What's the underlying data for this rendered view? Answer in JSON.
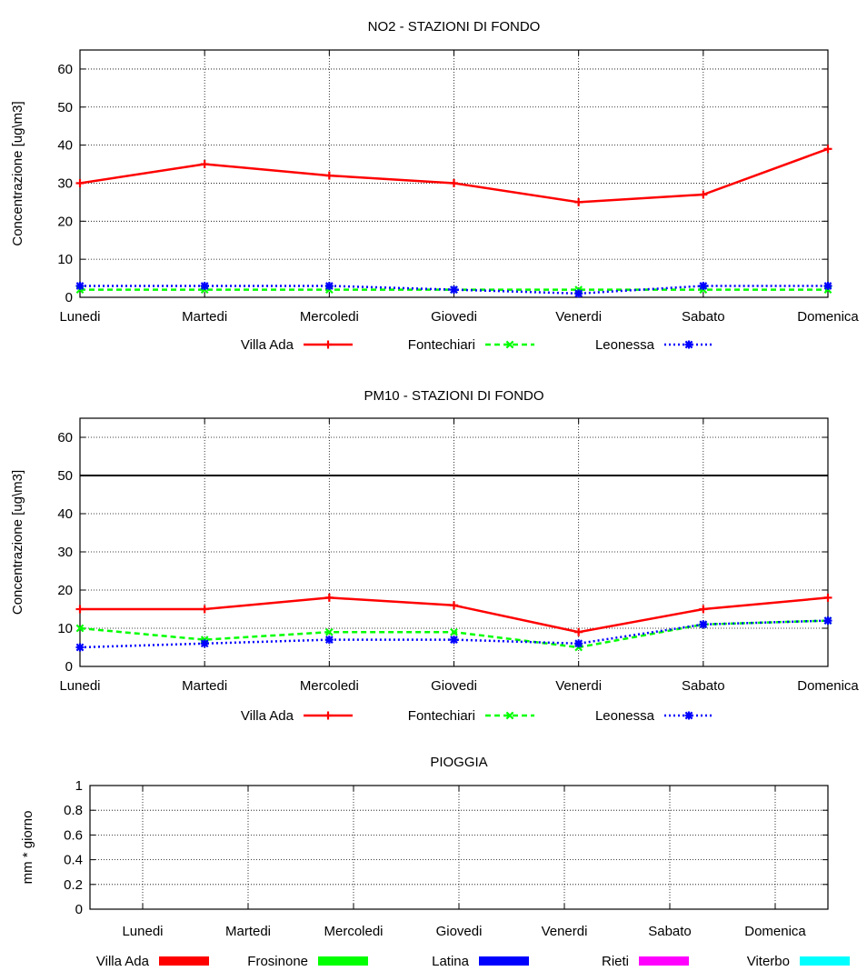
{
  "chart_data": [
    {
      "type": "line",
      "title": "NO2 - STAZIONI DI FONDO",
      "xlabel": "",
      "ylabel": "Concentrazione [ug\\m3]",
      "categories": [
        "Lunedi",
        "Martedi",
        "Mercoledi",
        "Giovedi",
        "Venerdi",
        "Sabato",
        "Domenica"
      ],
      "ylim": [
        0,
        65
      ],
      "yticks": [
        0,
        10,
        20,
        30,
        40,
        50,
        60
      ],
      "grid": true,
      "legend_position": "bottom",
      "series": [
        {
          "name": "Villa Ada",
          "color": "#ff0000",
          "marker": "plus",
          "dash": "solid",
          "values": [
            30,
            35,
            32,
            30,
            25,
            27,
            39
          ]
        },
        {
          "name": "Fontechiari",
          "color": "#00ff00",
          "marker": "x",
          "dash": "dashed",
          "values": [
            2,
            2,
            2,
            2,
            2,
            2,
            2
          ]
        },
        {
          "name": "Leonessa",
          "color": "#0000ff",
          "marker": "star",
          "dash": "dotted",
          "values": [
            3,
            3,
            3,
            2,
            1,
            3,
            3
          ]
        }
      ]
    },
    {
      "type": "line",
      "title": "PM10 - STAZIONI DI FONDO",
      "xlabel": "",
      "ylabel": "Concentrazione [ug\\m3]",
      "categories": [
        "Lunedi",
        "Martedi",
        "Mercoledi",
        "Giovedi",
        "Venerdi",
        "Sabato",
        "Domenica"
      ],
      "ylim": [
        0,
        65
      ],
      "yticks": [
        0,
        10,
        20,
        30,
        40,
        50,
        60
      ],
      "grid": true,
      "legend_position": "bottom",
      "reference_line": 50,
      "series": [
        {
          "name": "Villa Ada",
          "color": "#ff0000",
          "marker": "plus",
          "dash": "solid",
          "values": [
            15,
            15,
            18,
            16,
            9,
            15,
            18
          ]
        },
        {
          "name": "Fontechiari",
          "color": "#00ff00",
          "marker": "x",
          "dash": "dashed",
          "values": [
            10,
            7,
            9,
            9,
            5,
            11,
            12
          ]
        },
        {
          "name": "Leonessa",
          "color": "#0000ff",
          "marker": "star",
          "dash": "dotted",
          "values": [
            5,
            6,
            7,
            7,
            6,
            11,
            12
          ]
        }
      ]
    },
    {
      "type": "bar",
      "title": "PIOGGIA",
      "xlabel": "",
      "ylabel": "mm * giorno",
      "categories": [
        "Lunedi",
        "Martedi",
        "Mercoledi",
        "Giovedi",
        "Venerdi",
        "Sabato",
        "Domenica"
      ],
      "ylim": [
        0,
        1
      ],
      "yticks": [
        "0",
        "0.2",
        "0.4",
        "0.6",
        "0.8",
        "1"
      ],
      "grid": true,
      "legend_position": "bottom",
      "series": [
        {
          "name": "Villa Ada",
          "color": "#ff0000",
          "values": [
            0,
            0,
            0,
            0,
            0,
            0,
            0
          ]
        },
        {
          "name": "Frosinone",
          "color": "#00ff00",
          "values": [
            0,
            0,
            0,
            0,
            0,
            0,
            0
          ]
        },
        {
          "name": "Latina",
          "color": "#0000ff",
          "values": [
            0,
            0,
            0,
            0,
            0,
            0,
            0
          ]
        },
        {
          "name": "Rieti",
          "color": "#ff00ff",
          "values": [
            0,
            0,
            0,
            0,
            0,
            0,
            0
          ]
        },
        {
          "name": "Viterbo",
          "color": "#00ffff",
          "values": [
            0,
            0,
            0,
            0,
            0,
            0,
            0
          ]
        }
      ]
    }
  ]
}
